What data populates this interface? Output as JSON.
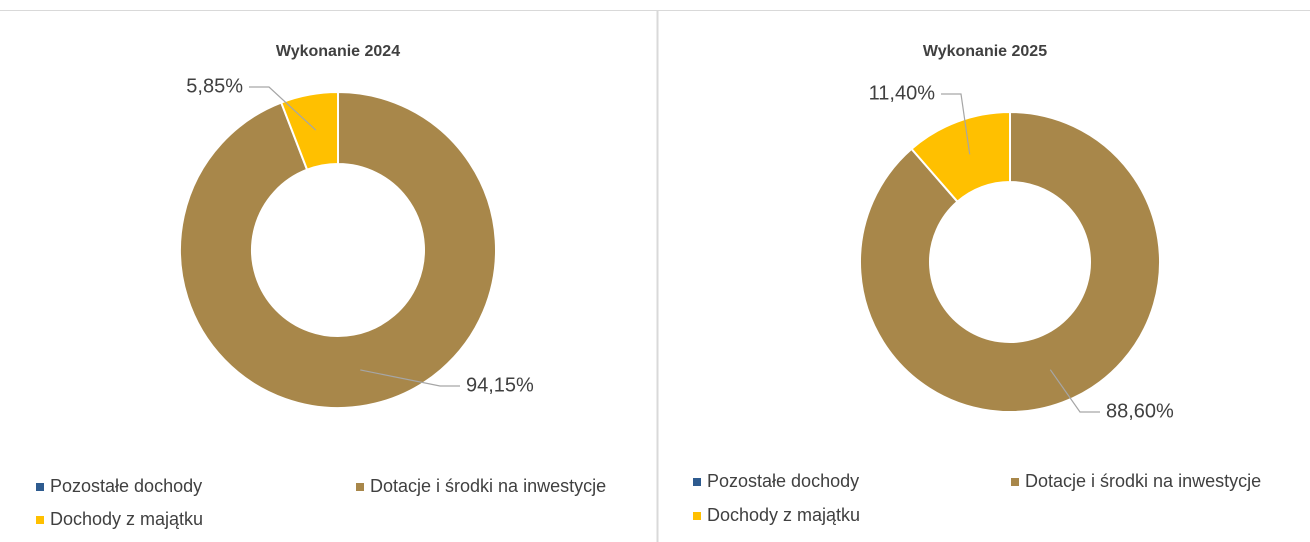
{
  "chart_data": [
    {
      "type": "donut",
      "title": "Wykonanie 2024",
      "categories": [
        "Pozostałe dochody",
        "Dotacje i środki na inwestycje",
        "Dochody z majątku"
      ],
      "values": [
        0,
        94.15,
        5.85
      ],
      "value_labels": [
        null,
        "94,15%",
        "5,85%"
      ],
      "colors": [
        "#2e5b8f",
        "#a8874a",
        "#ffc000"
      ]
    },
    {
      "type": "donut",
      "title": "Wykonanie 2025",
      "categories": [
        "Pozostałe dochody",
        "Dotacje i środki na inwestycje",
        "Dochody z majątku"
      ],
      "values": [
        0,
        88.6,
        11.4
      ],
      "value_labels": [
        null,
        "88,60%",
        "11,40%"
      ],
      "colors": [
        "#2e5b8f",
        "#a8874a",
        "#ffc000"
      ]
    }
  ]
}
